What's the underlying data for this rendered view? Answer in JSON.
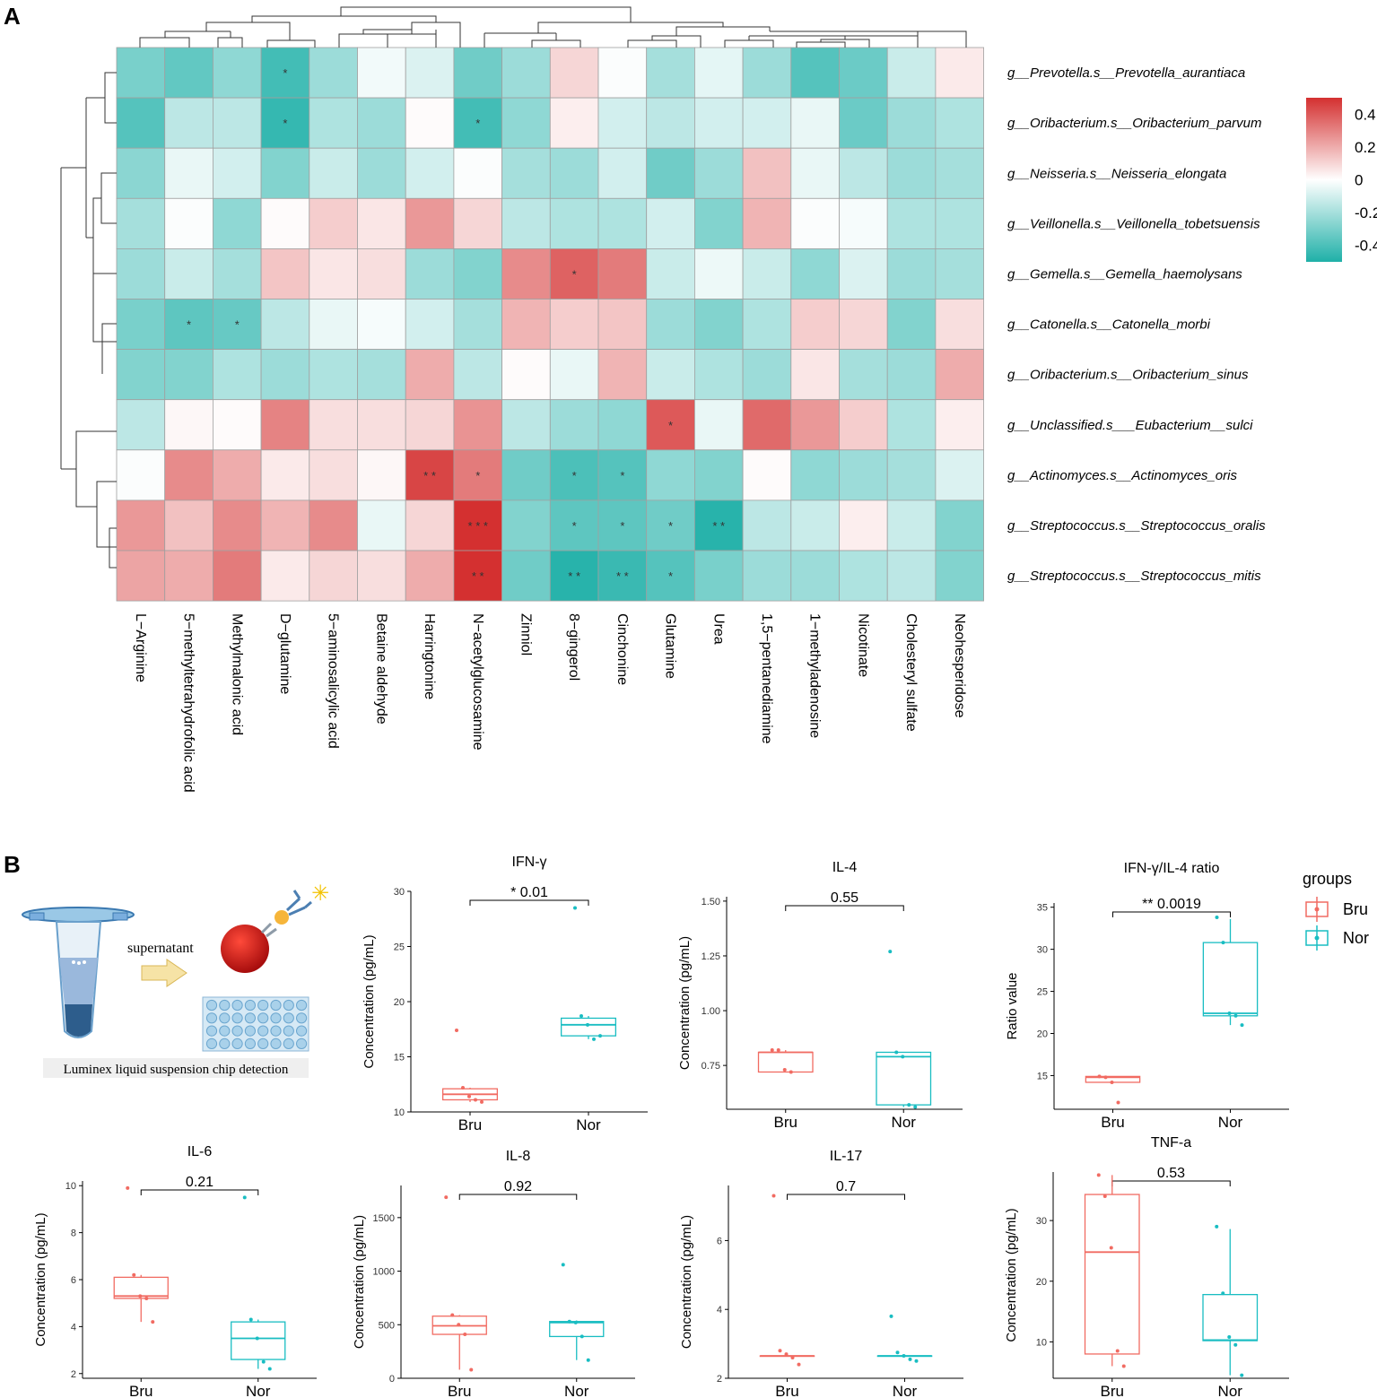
{
  "panels": {
    "a": "A",
    "b": "B"
  },
  "colors": {
    "neg": "#1fb0a8",
    "pos": "#d43030",
    "bru": "#f16b62",
    "nor": "#19bdc2",
    "grid": "#a0a0a0"
  },
  "chart_data": [
    {
      "type": "heatmap",
      "title": "",
      "rows": [
        "g__Prevotella.s__Prevotella_aurantiaca",
        "g__Oribacterium.s__Oribacterium_parvum",
        "g__Neisseria.s__Neisseria_elongata",
        "g__Veillonella.s__Veillonella_tobetsuensis",
        "g__Gemella.s__Gemella_haemolysans",
        "g__Catonella.s__Catonella_morbi",
        "g__Oribacterium.s__Oribacterium_sinus",
        "g__Unclassified.s___Eubacterium__sulci",
        "g__Actinomyces.s__Actinomyces_oris",
        "g__Streptococcus.s__Streptococcus_oralis",
        "g__Streptococcus.s__Streptococcus_mitis"
      ],
      "columns": [
        "L−Arginine",
        "5−methyltetrahydrofolic acid",
        "Methylmalonic acid",
        "D−glutamine",
        "5−aminosalicylic acid",
        "Betaine aldehyde",
        "Harringtonine",
        "N−acetylglucosamine",
        "Zinniol",
        "8−gingerol",
        "Cinchonine",
        "Glutamine",
        "Urea",
        "1,5−pentanediamine",
        "1−methyladenosine",
        "Nicotinate",
        "Cholesteryl sulfate",
        "Neohesperidose"
      ],
      "values": [
        [
          -0.3,
          -0.35,
          -0.25,
          -0.42,
          -0.22,
          -0.03,
          -0.08,
          -0.32,
          -0.22,
          0.1,
          -0.01,
          -0.2,
          -0.06,
          -0.22,
          -0.38,
          -0.33,
          -0.12,
          0.05
        ],
        [
          -0.38,
          -0.15,
          -0.15,
          -0.45,
          -0.18,
          -0.22,
          0.01,
          -0.42,
          -0.25,
          0.04,
          -0.1,
          -0.15,
          -0.1,
          -0.1,
          -0.05,
          -0.33,
          -0.22,
          -0.18
        ],
        [
          -0.26,
          -0.05,
          -0.1,
          -0.28,
          -0.12,
          -0.22,
          -0.1,
          -0.01,
          -0.2,
          -0.22,
          -0.1,
          -0.32,
          -0.22,
          0.15,
          -0.05,
          -0.15,
          -0.22,
          -0.2
        ],
        [
          -0.2,
          -0.01,
          -0.25,
          0.01,
          0.12,
          0.06,
          0.25,
          0.1,
          -0.15,
          -0.18,
          -0.18,
          -0.1,
          -0.28,
          0.18,
          -0.01,
          -0.02,
          -0.18,
          -0.18
        ],
        [
          -0.22,
          -0.12,
          -0.2,
          0.14,
          0.06,
          0.08,
          -0.22,
          -0.28,
          0.28,
          0.38,
          0.32,
          -0.12,
          -0.04,
          -0.12,
          -0.25,
          -0.08,
          -0.22,
          -0.2
        ],
        [
          -0.3,
          -0.36,
          -0.34,
          -0.15,
          -0.05,
          -0.02,
          -0.1,
          -0.2,
          0.18,
          0.12,
          0.14,
          -0.22,
          -0.28,
          -0.18,
          0.12,
          0.1,
          -0.28,
          0.08
        ],
        [
          -0.28,
          -0.28,
          -0.18,
          -0.22,
          -0.18,
          -0.2,
          0.2,
          -0.15,
          0.01,
          -0.05,
          0.18,
          -0.12,
          -0.18,
          -0.22,
          0.06,
          -0.2,
          -0.22,
          0.2
        ],
        [
          -0.15,
          0.02,
          0.01,
          0.3,
          0.08,
          0.08,
          0.1,
          0.26,
          -0.15,
          -0.22,
          -0.25,
          0.4,
          -0.05,
          0.36,
          0.25,
          0.12,
          -0.18,
          0.04
        ],
        [
          -0.01,
          0.28,
          0.2,
          0.05,
          0.08,
          0.02,
          0.45,
          0.32,
          -0.32,
          -0.4,
          -0.38,
          -0.25,
          -0.28,
          0.01,
          -0.25,
          -0.22,
          -0.2,
          -0.08
        ],
        [
          0.25,
          0.15,
          0.28,
          0.18,
          0.28,
          -0.05,
          0.1,
          0.55,
          -0.28,
          -0.36,
          -0.36,
          -0.32,
          -0.48,
          -0.15,
          -0.12,
          0.04,
          -0.12,
          -0.28
        ],
        [
          0.22,
          0.2,
          0.32,
          0.05,
          0.1,
          0.08,
          0.2,
          0.5,
          -0.32,
          -0.48,
          -0.44,
          -0.38,
          -0.3,
          -0.22,
          -0.22,
          -0.18,
          -0.15,
          -0.28
        ]
      ],
      "significance": [
        [
          "",
          "",
          "",
          "*",
          "",
          "",
          "",
          "",
          "",
          "",
          "",
          "",
          "",
          "",
          "",
          "",
          "",
          ""
        ],
        [
          "",
          "",
          "",
          "*",
          "",
          "",
          "",
          "*",
          "",
          "",
          "",
          "",
          "",
          "",
          "",
          "",
          "",
          ""
        ],
        [
          "",
          "",
          "",
          "",
          "",
          "",
          "",
          "",
          "",
          "",
          "",
          "",
          "",
          "",
          "",
          "",
          "",
          ""
        ],
        [
          "",
          "",
          "",
          "",
          "",
          "",
          "",
          "",
          "",
          "",
          "",
          "",
          "",
          "",
          "",
          "",
          "",
          ""
        ],
        [
          "",
          "",
          "",
          "",
          "",
          "",
          "",
          "",
          "",
          "*",
          "",
          "",
          "",
          "",
          "",
          "",
          "",
          ""
        ],
        [
          "",
          "*",
          "*",
          "",
          "",
          "",
          "",
          "",
          "",
          "",
          "",
          "",
          "",
          "",
          "",
          "",
          "",
          ""
        ],
        [
          "",
          "",
          "",
          "",
          "",
          "",
          "",
          "",
          "",
          "",
          "",
          "",
          "",
          "",
          "",
          "",
          "",
          ""
        ],
        [
          "",
          "",
          "",
          "",
          "",
          "",
          "",
          "",
          "",
          "",
          "",
          "*",
          "",
          "",
          "",
          "",
          "",
          ""
        ],
        [
          "",
          "",
          "",
          "",
          "",
          "",
          "**",
          "*",
          "",
          "*",
          "*",
          "",
          "",
          "",
          "",
          "",
          "",
          ""
        ],
        [
          "",
          "",
          "",
          "",
          "",
          "",
          "",
          "***",
          "",
          "*",
          "*",
          "*",
          "**",
          "",
          "",
          "",
          "",
          ""
        ],
        [
          "",
          "",
          "",
          "",
          "",
          "",
          "",
          "**",
          "",
          "**",
          "**",
          "*",
          "",
          "",
          "",
          "",
          "",
          ""
        ]
      ],
      "colorbar": {
        "ticks": [
          "0.4",
          "0.2",
          "0",
          "-0.2",
          "-0.4"
        ],
        "range": [
          -0.5,
          0.5
        ]
      }
    },
    {
      "type": "boxplot",
      "title": "IFN-γ",
      "ylabel": "Concentration (pg/mL)",
      "categories": [
        "Bru",
        "Nor"
      ],
      "ylim": [
        10,
        30
      ],
      "yticks": [
        "10",
        "15",
        "20",
        "25",
        "30"
      ],
      "pvalue": "* 0.01",
      "series": [
        {
          "name": "Bru",
          "points": [
            17.4,
            12.2,
            11.4,
            11.1,
            10.9
          ],
          "box": [
            10.9,
            11.1,
            11.6,
            12.1,
            12.2
          ]
        },
        {
          "name": "Nor",
          "points": [
            28.5,
            18.7,
            17.9,
            16.6,
            16.9
          ],
          "box": [
            16.6,
            16.9,
            17.9,
            18.5,
            18.7
          ]
        }
      ]
    },
    {
      "type": "boxplot",
      "title": "IL-4",
      "ylabel": "Concentration (pg/mL)",
      "categories": [
        "Bru",
        "Nor"
      ],
      "ylim": [
        0.55,
        1.52
      ],
      "yticks": [
        "0.75",
        "1.00",
        "1.25",
        "1.50"
      ],
      "pvalue": "0.55",
      "series": [
        {
          "name": "Bru",
          "points": [
            0.82,
            0.82,
            0.73,
            0.72
          ],
          "box": [
            0.72,
            0.72,
            0.81,
            0.81,
            0.82
          ]
        },
        {
          "name": "Nor",
          "points": [
            1.27,
            0.81,
            0.79,
            0.57,
            0.56
          ],
          "box": [
            0.56,
            0.57,
            0.79,
            0.81,
            0.81
          ]
        }
      ]
    },
    {
      "type": "boxplot",
      "title": "IFN-γ/IL-4 ratio",
      "ylabel": "Ratio value",
      "categories": [
        "Bru",
        "Nor"
      ],
      "ylim": [
        11,
        35.5
      ],
      "yticks": [
        "15",
        "20",
        "25",
        "30",
        "35"
      ],
      "pvalue": "** 0.0019",
      "series": [
        {
          "name": "Bru",
          "points": [
            14.9,
            14.8,
            14.2,
            11.8
          ],
          "box": [
            14.2,
            14.2,
            14.8,
            14.9,
            14.9
          ]
        },
        {
          "name": "Nor",
          "points": [
            33.8,
            30.8,
            22.4,
            22.1,
            21.0
          ],
          "box": [
            21.0,
            22.1,
            22.4,
            30.8,
            33.6
          ]
        }
      ]
    },
    {
      "type": "boxplot",
      "title": "IL-6",
      "ylabel": "Concentration (pg/mL)",
      "categories": [
        "Bru",
        "Nor"
      ],
      "ylim": [
        1.8,
        10.2
      ],
      "yticks": [
        "2",
        "4",
        "6",
        "8",
        "10"
      ],
      "pvalue": "0.21",
      "series": [
        {
          "name": "Bru",
          "points": [
            9.9,
            6.2,
            5.3,
            5.2,
            4.2
          ],
          "box": [
            4.2,
            5.2,
            5.3,
            6.1,
            6.2
          ]
        },
        {
          "name": "Nor",
          "points": [
            9.5,
            4.3,
            3.5,
            2.5,
            2.2
          ],
          "box": [
            2.2,
            2.6,
            3.5,
            4.2,
            4.3
          ]
        }
      ]
    },
    {
      "type": "boxplot",
      "title": "IL-8",
      "ylabel": "Concentration (pg/mL)",
      "categories": [
        "Bru",
        "Nor"
      ],
      "ylim": [
        0,
        1800
      ],
      "yticks": [
        "0",
        "500",
        "1000",
        "1500"
      ],
      "pvalue": "0.92",
      "series": [
        {
          "name": "Bru",
          "points": [
            1690,
            590,
            500,
            410,
            80
          ],
          "box": [
            80,
            410,
            490,
            580,
            590
          ]
        },
        {
          "name": "Nor",
          "points": [
            1060,
            530,
            520,
            390,
            170
          ],
          "box": [
            170,
            390,
            520,
            530,
            540
          ]
        }
      ]
    },
    {
      "type": "boxplot",
      "title": "IL-17",
      "ylabel": "Concentration (pg/mL)",
      "categories": [
        "Bru",
        "Nor"
      ],
      "ylim": [
        2,
        7.6
      ],
      "yticks": [
        "2",
        "4",
        "6"
      ],
      "pvalue": "0.7",
      "series": [
        {
          "name": "Bru",
          "points": [
            7.3,
            2.8,
            2.7,
            2.6,
            2.4
          ],
          "box": [
            2.65,
            2.65,
            2.65,
            2.65,
            2.65
          ]
        },
        {
          "name": "Nor",
          "points": [
            3.8,
            2.75,
            2.65,
            2.55,
            2.5
          ],
          "box": [
            2.65,
            2.65,
            2.65,
            2.65,
            2.65
          ]
        }
      ]
    },
    {
      "type": "boxplot",
      "title": "TNF-a",
      "ylabel": "Concentration (pg/mL)",
      "categories": [
        "Bru",
        "Nor"
      ],
      "ylim": [
        4,
        38
      ],
      "yticks": [
        "10",
        "20",
        "30"
      ],
      "pvalue": "0.53",
      "series": [
        {
          "name": "Bru",
          "points": [
            37.5,
            34,
            25.5,
            8.5,
            6
          ],
          "box": [
            6,
            8,
            24.8,
            34.3,
            37.5
          ]
        },
        {
          "name": "Nor",
          "points": [
            29,
            18,
            10.8,
            9.5,
            4.5
          ],
          "box": [
            4.5,
            10.2,
            10.3,
            17.8,
            28.6
          ]
        }
      ]
    }
  ],
  "schematic": {
    "supernatant": "supernatant",
    "caption": "Luminex liquid suspension chip detection"
  },
  "legend": {
    "title": "groups",
    "items": [
      "Bru",
      "Nor"
    ]
  }
}
